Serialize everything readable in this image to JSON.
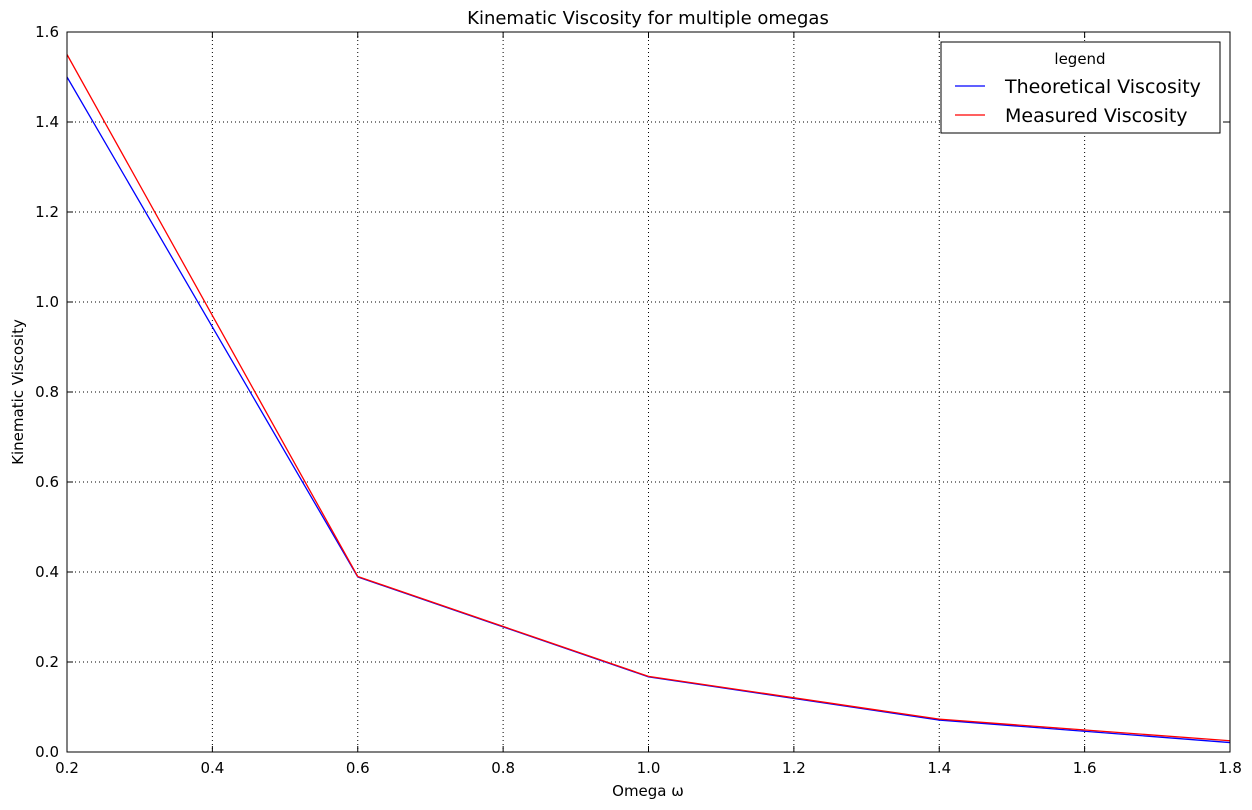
{
  "chart_data": {
    "type": "line",
    "title": "Kinematic Viscosity for multiple omegas",
    "xlabel": "Omega ω",
    "ylabel": "Kinematic Viscosity",
    "xlim": [
      0.2,
      1.8
    ],
    "ylim": [
      0.0,
      1.6
    ],
    "xticks": [
      "0.2",
      "0.4",
      "0.6",
      "0.8",
      "1.0",
      "1.2",
      "1.4",
      "1.6",
      "1.8"
    ],
    "yticks": [
      "0.0",
      "0.2",
      "0.4",
      "0.6",
      "0.8",
      "1.0",
      "1.2",
      "1.4",
      "1.6"
    ],
    "grid": true,
    "legend": {
      "title": "legend",
      "placement": "upper-right"
    },
    "x": [
      0.2,
      0.6,
      1.0,
      1.4,
      1.8
    ],
    "series": [
      {
        "name": "Theoretical Viscosity",
        "color": "#0000ff",
        "values": [
          1.5,
          0.389,
          0.167,
          0.071,
          0.021
        ]
      },
      {
        "name": "Measured Viscosity",
        "color": "#ff0000",
        "values": [
          1.55,
          0.39,
          0.168,
          0.073,
          0.025
        ]
      }
    ]
  }
}
